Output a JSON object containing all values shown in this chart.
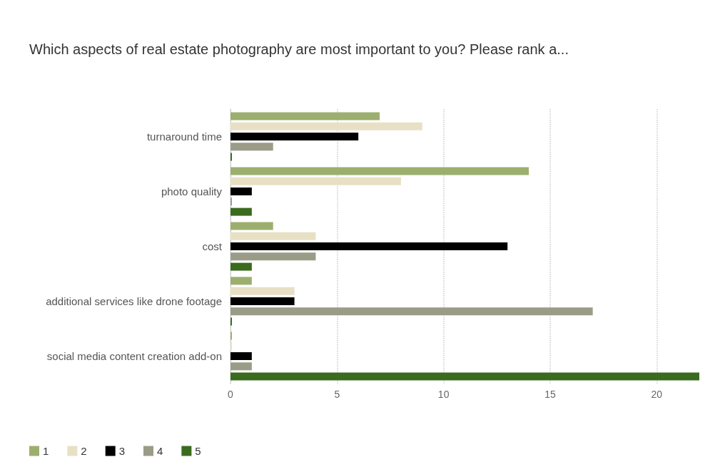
{
  "chart_data": {
    "type": "bar",
    "orientation": "horizontal",
    "title": "Which aspects of real estate photography are most important to you? Please rank a...",
    "categories": [
      "turnaround time",
      "photo quality",
      "cost",
      "additional services like drone footage",
      "social media content creation add-on"
    ],
    "series": [
      {
        "name": "1",
        "color": "#9caf6e",
        "values": [
          7,
          14,
          2,
          1,
          0
        ]
      },
      {
        "name": "2",
        "color": "#e8e0c4",
        "values": [
          9,
          8,
          4,
          3,
          0
        ]
      },
      {
        "name": "3",
        "color": "#000000",
        "values": [
          6,
          1,
          13,
          3,
          1
        ]
      },
      {
        "name": "4",
        "color": "#9a9c88",
        "values": [
          2,
          0,
          4,
          17,
          1
        ]
      },
      {
        "name": "5",
        "color": "#3a6b1e",
        "values": [
          0,
          1,
          1,
          0,
          22
        ]
      }
    ],
    "xlim": [
      0,
      22
    ],
    "xticks": [
      0,
      5,
      10,
      15,
      20
    ],
    "grid": "x",
    "legend": "bottom left"
  }
}
